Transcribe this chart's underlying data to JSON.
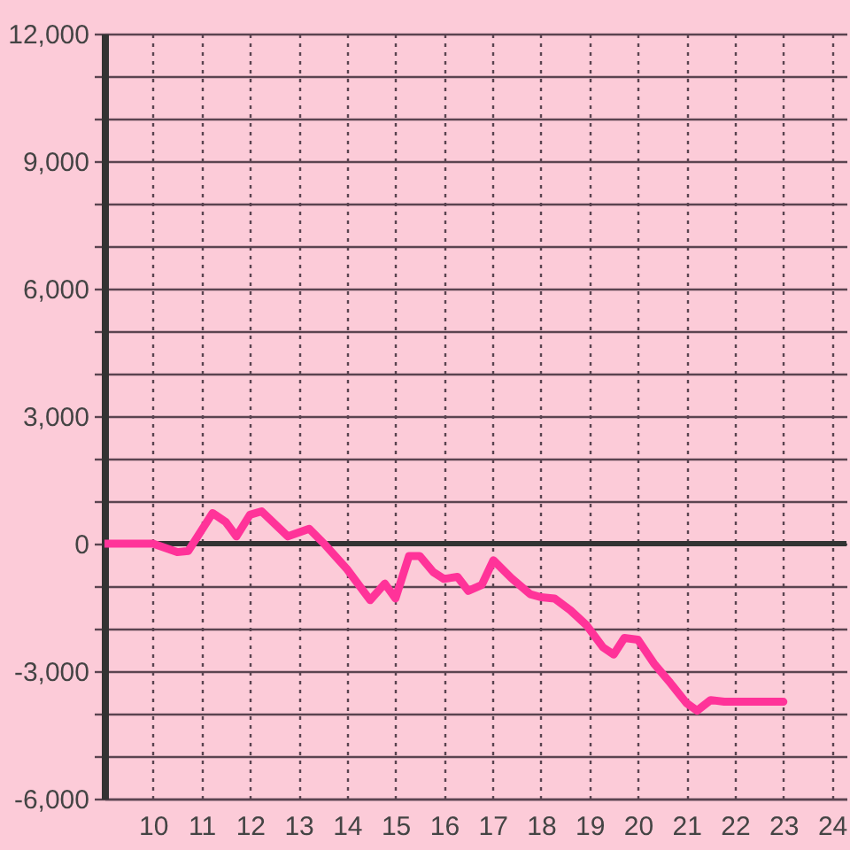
{
  "chart_data": {
    "type": "line",
    "color": "#ff3399",
    "line_style": "solid",
    "x": [
      9.0,
      10.0,
      10.5,
      10.73,
      11.23,
      11.5,
      11.72,
      12.0,
      12.24,
      12.78,
      13.22,
      13.56,
      14.0,
      14.48,
      14.78,
      15.0,
      15.28,
      15.5,
      15.78,
      16.0,
      16.28,
      16.5,
      16.78,
      17.02,
      17.39,
      17.78,
      18.0,
      18.28,
      18.61,
      18.94,
      19.28,
      19.5,
      19.72,
      20.0,
      20.33,
      20.67,
      21.0,
      21.22,
      21.5,
      21.78,
      23.0
    ],
    "values": [
      0,
      0,
      -200,
      -170,
      720,
      510,
      170,
      680,
      760,
      170,
      350,
      -40,
      -600,
      -1330,
      -940,
      -1290,
      -290,
      -290,
      -670,
      -830,
      -780,
      -1110,
      -970,
      -390,
      -810,
      -1190,
      -1260,
      -1290,
      -1570,
      -1920,
      -2440,
      -2610,
      -2220,
      -2260,
      -2820,
      -3280,
      -3750,
      -3930,
      -3680,
      -3720,
      -3720
    ],
    "xlim": [
      9,
      24.3
    ],
    "xticks": [
      10,
      11,
      12,
      13,
      14,
      15,
      16,
      17,
      18,
      19,
      20,
      21,
      22,
      23,
      24
    ],
    "ylim": [
      -6000,
      12000
    ],
    "yticks": [
      {
        "value": -6000,
        "label": "-6,000"
      },
      {
        "value": -5000,
        "label": null
      },
      {
        "value": -4000,
        "label": null
      },
      {
        "value": -3000,
        "label": "-3,000"
      },
      {
        "value": -2000,
        "label": null
      },
      {
        "value": -1000,
        "label": null
      },
      0,
      {
        "value": 1000,
        "label": null
      },
      {
        "value": 2000,
        "label": null
      },
      {
        "value": 3000,
        "label": "3,000"
      },
      {
        "value": 4000,
        "label": null
      },
      {
        "value": 5000,
        "label": null
      },
      {
        "value": 6000,
        "label": "6,000"
      },
      {
        "value": 7000,
        "label": null
      },
      {
        "value": 8000,
        "label": null
      },
      {
        "value": 9000,
        "label": "9,000"
      },
      {
        "value": 10000,
        "label": null
      },
      {
        "value": 11000,
        "label": null
      },
      {
        "value": 12000,
        "label": "12,000"
      }
    ],
    "grid": true,
    "ref_lines": [
      {
        "axis": "y",
        "value": 0,
        "color": "#333333"
      }
    ]
  }
}
